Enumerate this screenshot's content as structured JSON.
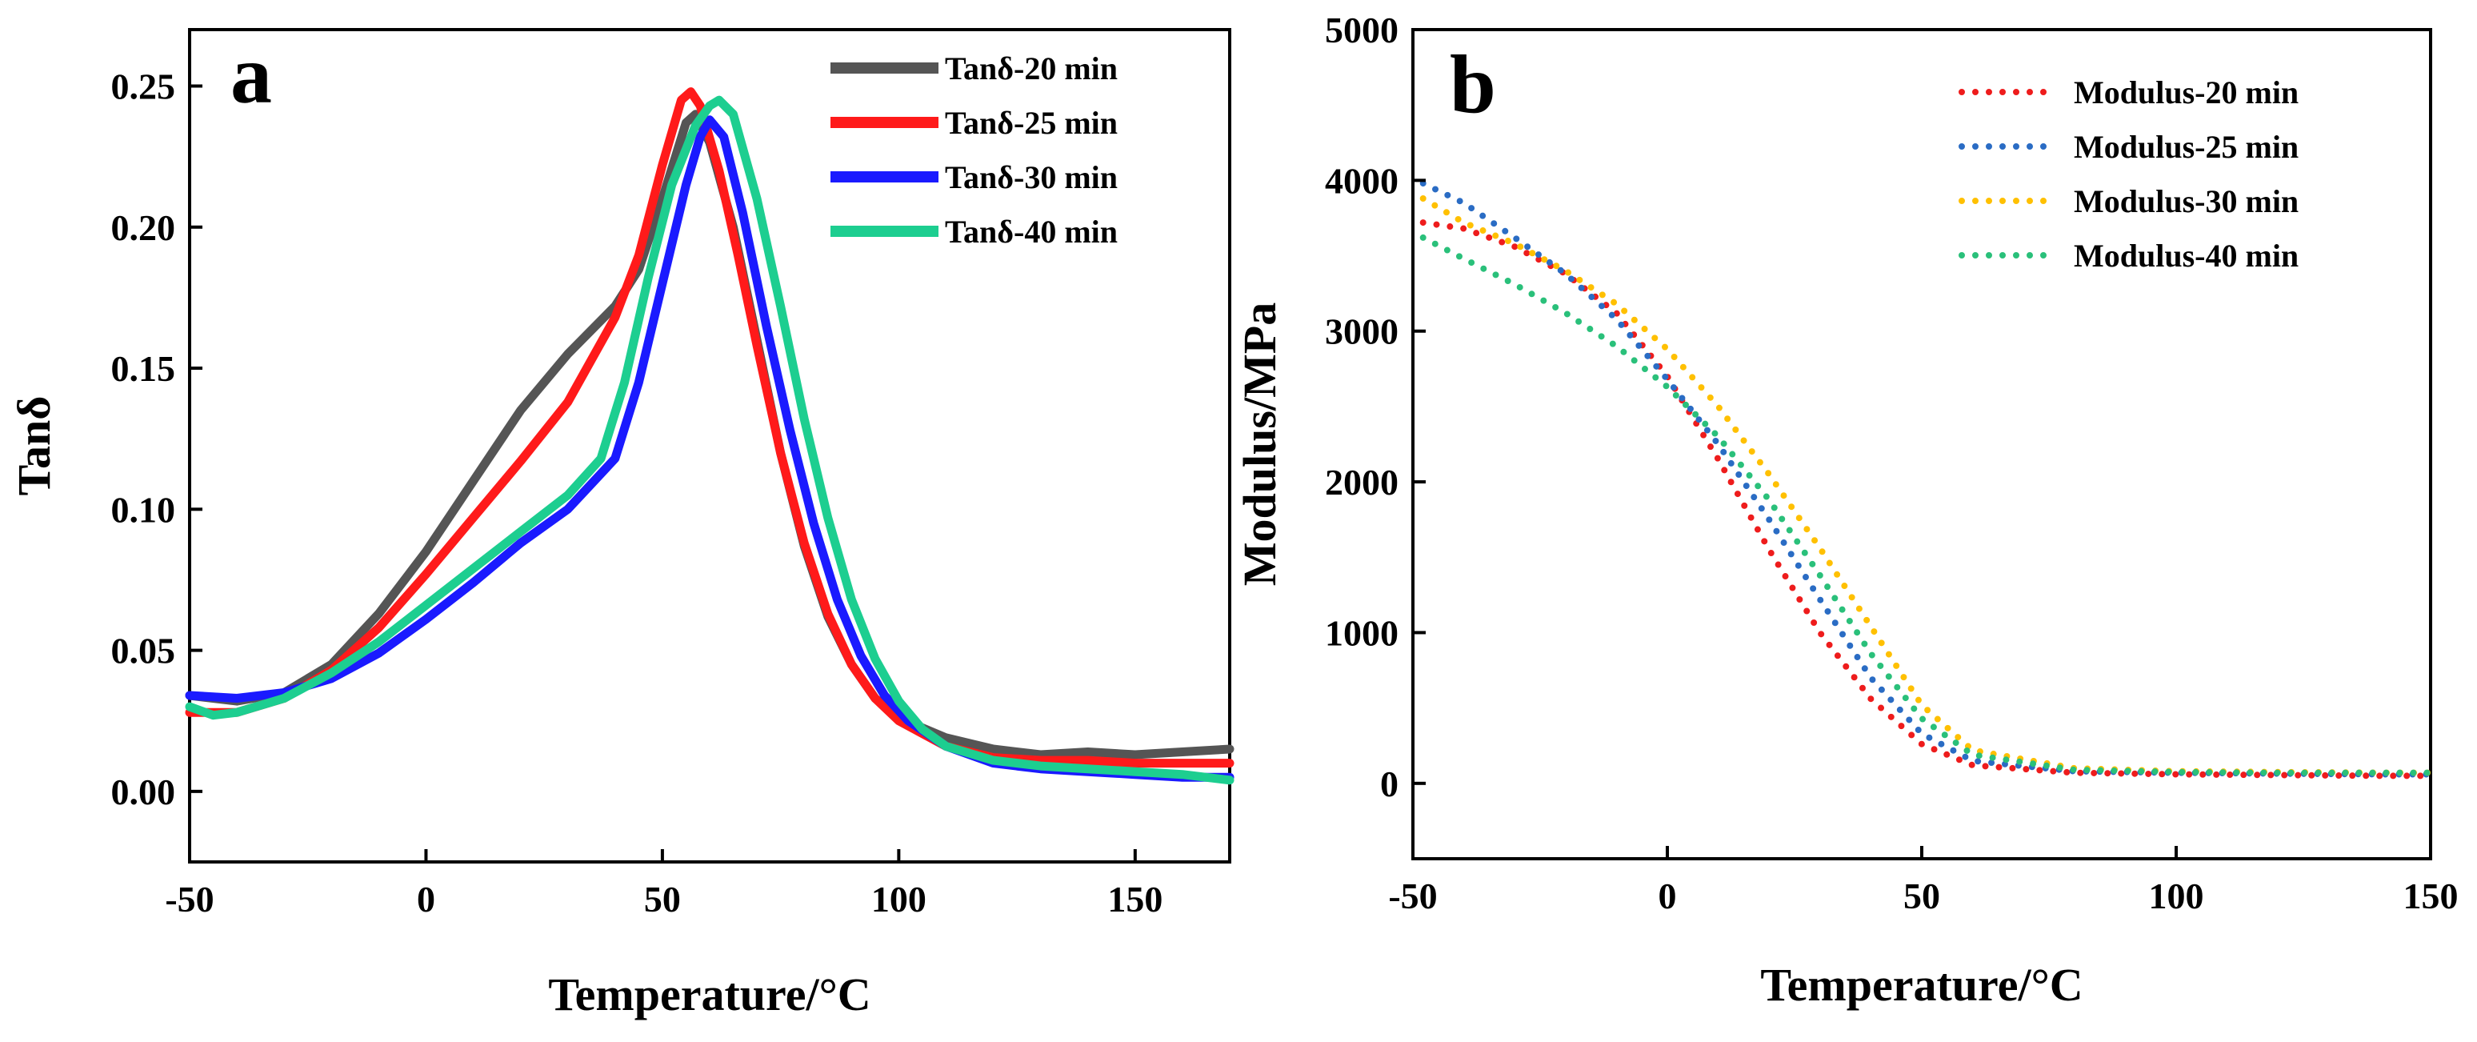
{
  "chart_data": [
    {
      "panel": "a",
      "type": "line",
      "xlabel": "Temperature/°C",
      "ylabel": "Tanδ",
      "xlim": [
        -50,
        170
      ],
      "ylim": [
        -0.025,
        0.27
      ],
      "xticks": [
        -50,
        0,
        50,
        100,
        150
      ],
      "yticks": [
        0.0,
        0.05,
        0.1,
        0.15,
        0.2,
        0.25
      ],
      "ytick_labels": [
        "0.00",
        "0.05",
        "0.10",
        "0.15",
        "0.20",
        "0.25"
      ],
      "legend_position": "top-right",
      "series": [
        {
          "name": "Tanδ-20 min",
          "color": "#555555",
          "points": [
            [
              -50,
              0.034
            ],
            [
              -40,
              0.032
            ],
            [
              -30,
              0.035
            ],
            [
              -20,
              0.045
            ],
            [
              -10,
              0.063
            ],
            [
              0,
              0.085
            ],
            [
              10,
              0.11
            ],
            [
              20,
              0.135
            ],
            [
              30,
              0.155
            ],
            [
              40,
              0.172
            ],
            [
              45,
              0.185
            ],
            [
              50,
              0.21
            ],
            [
              55,
              0.237
            ],
            [
              57,
              0.24
            ],
            [
              60,
              0.23
            ],
            [
              65,
              0.2
            ],
            [
              70,
              0.16
            ],
            [
              75,
              0.12
            ],
            [
              80,
              0.087
            ],
            [
              85,
              0.062
            ],
            [
              90,
              0.045
            ],
            [
              95,
              0.033
            ],
            [
              100,
              0.026
            ],
            [
              110,
              0.019
            ],
            [
              120,
              0.015
            ],
            [
              130,
              0.013
            ],
            [
              140,
              0.014
            ],
            [
              150,
              0.013
            ],
            [
              160,
              0.014
            ],
            [
              170,
              0.015
            ]
          ]
        },
        {
          "name": "Tanδ-25 min",
          "color": "#ff1a1a",
          "points": [
            [
              -50,
              0.028
            ],
            [
              -40,
              0.028
            ],
            [
              -30,
              0.033
            ],
            [
              -20,
              0.043
            ],
            [
              -10,
              0.058
            ],
            [
              0,
              0.077
            ],
            [
              10,
              0.097
            ],
            [
              20,
              0.117
            ],
            [
              30,
              0.138
            ],
            [
              40,
              0.168
            ],
            [
              45,
              0.19
            ],
            [
              50,
              0.222
            ],
            [
              54,
              0.245
            ],
            [
              56,
              0.248
            ],
            [
              58,
              0.243
            ],
            [
              62,
              0.22
            ],
            [
              66,
              0.19
            ],
            [
              70,
              0.158
            ],
            [
              75,
              0.12
            ],
            [
              80,
              0.088
            ],
            [
              85,
              0.063
            ],
            [
              90,
              0.045
            ],
            [
              95,
              0.033
            ],
            [
              100,
              0.025
            ],
            [
              110,
              0.016
            ],
            [
              120,
              0.012
            ],
            [
              130,
              0.011
            ],
            [
              140,
              0.011
            ],
            [
              150,
              0.01
            ],
            [
              160,
              0.01
            ],
            [
              170,
              0.01
            ]
          ]
        },
        {
          "name": "Tanδ-30 min",
          "color": "#1a1aff",
          "points": [
            [
              -50,
              0.034
            ],
            [
              -40,
              0.033
            ],
            [
              -30,
              0.035
            ],
            [
              -20,
              0.04
            ],
            [
              -10,
              0.049
            ],
            [
              0,
              0.061
            ],
            [
              10,
              0.074
            ],
            [
              20,
              0.088
            ],
            [
              30,
              0.1
            ],
            [
              40,
              0.118
            ],
            [
              45,
              0.145
            ],
            [
              50,
              0.18
            ],
            [
              55,
              0.215
            ],
            [
              58,
              0.232
            ],
            [
              60,
              0.238
            ],
            [
              63,
              0.232
            ],
            [
              67,
              0.205
            ],
            [
              72,
              0.165
            ],
            [
              77,
              0.128
            ],
            [
              82,
              0.095
            ],
            [
              87,
              0.068
            ],
            [
              92,
              0.048
            ],
            [
              97,
              0.034
            ],
            [
              102,
              0.025
            ],
            [
              110,
              0.016
            ],
            [
              120,
              0.01
            ],
            [
              130,
              0.008
            ],
            [
              140,
              0.007
            ],
            [
              150,
              0.006
            ],
            [
              160,
              0.005
            ],
            [
              170,
              0.005
            ]
          ]
        },
        {
          "name": "Tanδ-40 min",
          "color": "#1dce90",
          "points": [
            [
              -50,
              0.03
            ],
            [
              -45,
              0.027
            ],
            [
              -40,
              0.028
            ],
            [
              -30,
              0.033
            ],
            [
              -20,
              0.042
            ],
            [
              -10,
              0.053
            ],
            [
              0,
              0.066
            ],
            [
              10,
              0.079
            ],
            [
              20,
              0.092
            ],
            [
              30,
              0.105
            ],
            [
              37,
              0.118
            ],
            [
              42,
              0.145
            ],
            [
              47,
              0.182
            ],
            [
              52,
              0.215
            ],
            [
              57,
              0.236
            ],
            [
              60,
              0.243
            ],
            [
              62,
              0.245
            ],
            [
              65,
              0.24
            ],
            [
              70,
              0.21
            ],
            [
              75,
              0.172
            ],
            [
              80,
              0.132
            ],
            [
              85,
              0.097
            ],
            [
              90,
              0.068
            ],
            [
              95,
              0.047
            ],
            [
              100,
              0.032
            ],
            [
              105,
              0.022
            ],
            [
              110,
              0.016
            ],
            [
              120,
              0.011
            ],
            [
              130,
              0.009
            ],
            [
              140,
              0.008
            ],
            [
              150,
              0.007
            ],
            [
              160,
              0.006
            ],
            [
              170,
              0.004
            ]
          ]
        }
      ]
    },
    {
      "panel": "b",
      "type": "scatter",
      "xlabel": "Temperature/°C",
      "ylabel": "Modulus/MPa",
      "xlim": [
        -50,
        150
      ],
      "ylim": [
        -500,
        5000
      ],
      "xticks": [
        -50,
        0,
        50,
        100,
        150
      ],
      "yticks": [
        0,
        1000,
        2000,
        3000,
        4000,
        5000
      ],
      "ytick_labels": [
        "0",
        "1000",
        "2000",
        "3000",
        "4000",
        "5000"
      ],
      "legend_position": "top-right",
      "series": [
        {
          "name": "Modulus-20 min",
          "color": "#ee1c1c",
          "points": [
            [
              -48,
              3720
            ],
            [
              -40,
              3680
            ],
            [
              -30,
              3560
            ],
            [
              -20,
              3380
            ],
            [
              -10,
              3120
            ],
            [
              0,
              2700
            ],
            [
              10,
              2150
            ],
            [
              20,
              1550
            ],
            [
              30,
              1000
            ],
            [
              40,
              560
            ],
            [
              50,
              260
            ],
            [
              60,
              120
            ],
            [
              80,
              70
            ],
            [
              100,
              60
            ],
            [
              120,
              55
            ],
            [
              140,
              50
            ],
            [
              150,
              50
            ]
          ]
        },
        {
          "name": "Modulus-25 min",
          "color": "#2a6cc4",
          "points": [
            [
              -48,
              3980
            ],
            [
              -40,
              3850
            ],
            [
              -30,
              3620
            ],
            [
              -20,
              3380
            ],
            [
              -10,
              3080
            ],
            [
              0,
              2680
            ],
            [
              10,
              2250
            ],
            [
              20,
              1750
            ],
            [
              30,
              1220
            ],
            [
              40,
              700
            ],
            [
              50,
              330
            ],
            [
              60,
              150
            ],
            [
              80,
              80
            ],
            [
              100,
              70
            ],
            [
              120,
              65
            ],
            [
              140,
              60
            ],
            [
              150,
              60
            ]
          ]
        },
        {
          "name": "Modulus-30 min",
          "color": "#ffc000",
          "points": [
            [
              -48,
              3880
            ],
            [
              -40,
              3720
            ],
            [
              -30,
              3580
            ],
            [
              -20,
              3400
            ],
            [
              -10,
              3180
            ],
            [
              0,
              2880
            ],
            [
              10,
              2500
            ],
            [
              20,
              2050
            ],
            [
              30,
              1560
            ],
            [
              40,
              1040
            ],
            [
              50,
              520
            ],
            [
              60,
              220
            ],
            [
              80,
              100
            ],
            [
              100,
              80
            ],
            [
              120,
              75
            ],
            [
              140,
              70
            ],
            [
              150,
              70
            ]
          ]
        },
        {
          "name": "Modulus-40 min",
          "color": "#2ac07a",
          "points": [
            [
              -48,
              3620
            ],
            [
              -40,
              3480
            ],
            [
              -30,
              3310
            ],
            [
              -20,
              3120
            ],
            [
              -10,
              2900
            ],
            [
              0,
              2630
            ],
            [
              10,
              2300
            ],
            [
              20,
              1880
            ],
            [
              30,
              1380
            ],
            [
              40,
              860
            ],
            [
              50,
              430
            ],
            [
              60,
              190
            ],
            [
              80,
              90
            ],
            [
              100,
              75
            ],
            [
              120,
              70
            ],
            [
              140,
              70
            ],
            [
              150,
              70
            ]
          ]
        }
      ]
    }
  ],
  "panel_labels": [
    "a",
    "b"
  ]
}
